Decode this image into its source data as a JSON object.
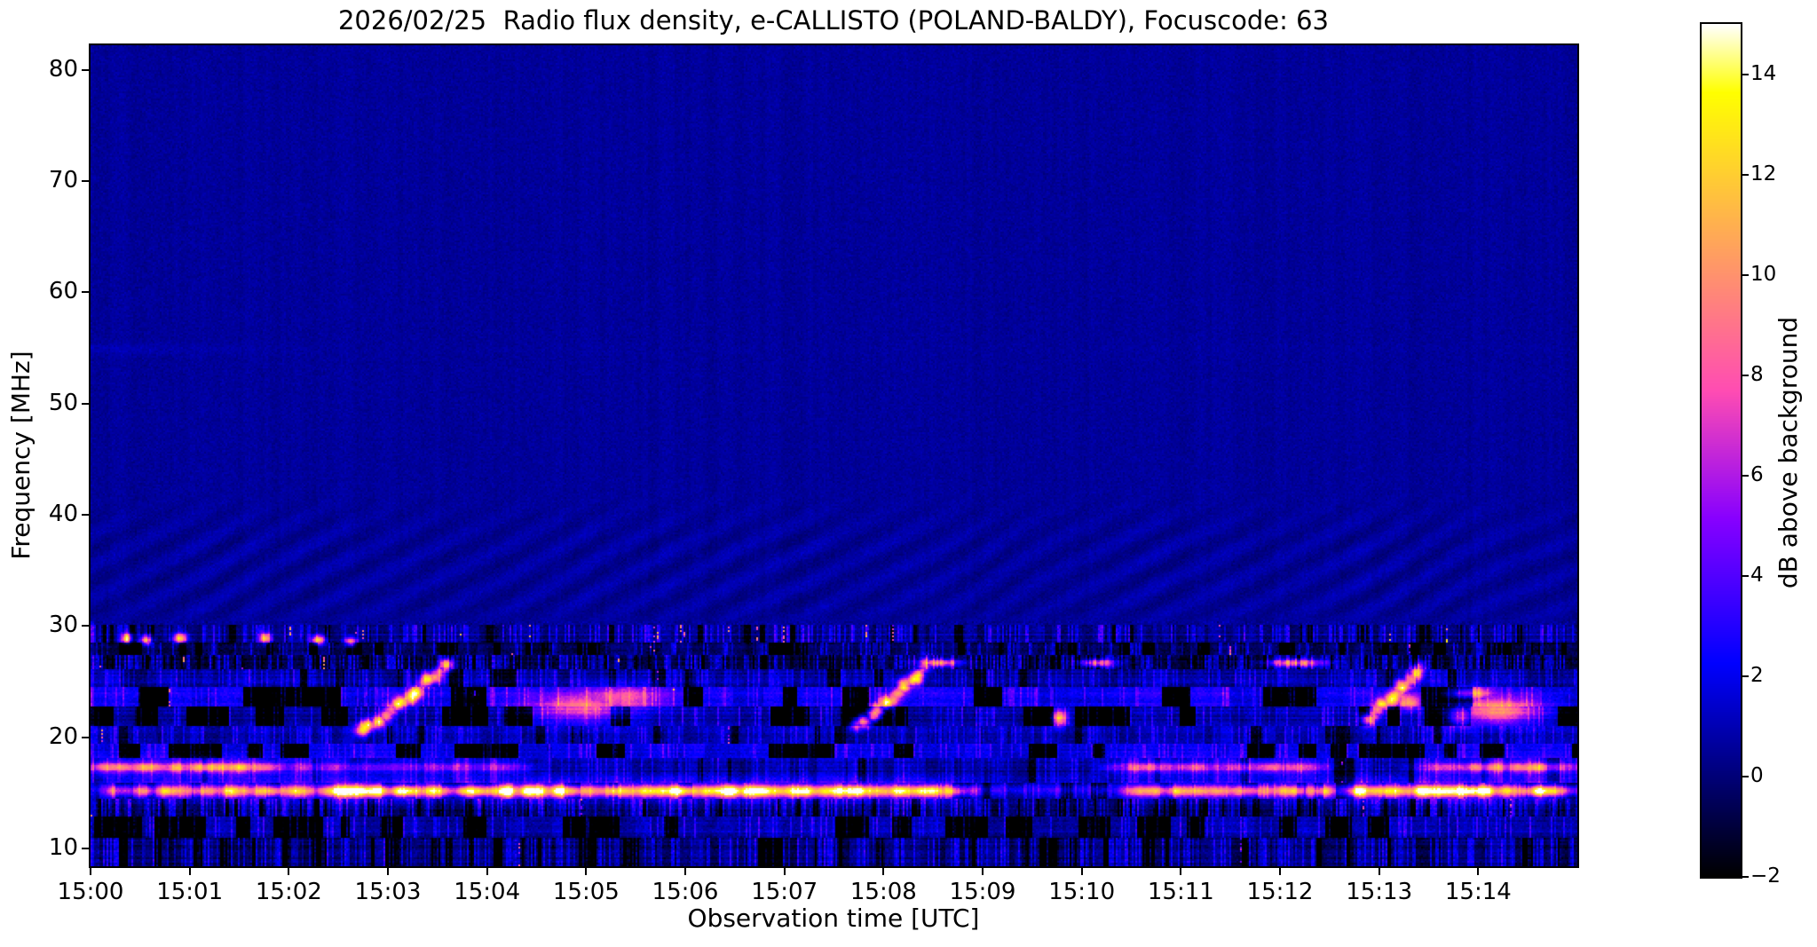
{
  "figure": {
    "background_color": "#ffffff",
    "text_color": "#000000"
  },
  "chart_data": {
    "type": "heatmap",
    "title": "2026/02/25  Radio flux density, e-CALLISTO (POLAND-BALDY), Focuscode: 63",
    "xlabel": "Observation time [UTC]",
    "ylabel": "Frequency [MHz]",
    "x_ticks": [
      "15:00",
      "15:01",
      "15:02",
      "15:03",
      "15:04",
      "15:05",
      "15:06",
      "15:07",
      "15:08",
      "15:09",
      "15:10",
      "15:11",
      "15:12",
      "15:13",
      "15:14"
    ],
    "x_tick_minutes": [
      0,
      1,
      2,
      3,
      4,
      5,
      6,
      7,
      8,
      9,
      10,
      11,
      12,
      13,
      14
    ],
    "x_range_minutes": [
      0,
      15
    ],
    "y_ticks": [
      "80",
      "70",
      "60",
      "50",
      "40",
      "30",
      "20",
      "10"
    ],
    "y_tick_values": [
      80,
      70,
      60,
      50,
      40,
      30,
      20,
      10
    ],
    "y_range_mhz": [
      8.4,
      82.2
    ],
    "grid": false,
    "colorbar": {
      "label": "dB above background",
      "tick_labels": [
        "14",
        "12",
        "10",
        "8",
        "6",
        "4",
        "2",
        "0",
        "−2"
      ],
      "tick_values": [
        14,
        12,
        10,
        8,
        6,
        4,
        2,
        0,
        -2
      ],
      "range_db": [
        -2,
        15
      ],
      "colormap": "gnuplot2",
      "background_hex": "#0b0b99"
    },
    "background_db": 0.55,
    "features": {
      "left_edge_boost": {
        "minutes": 0.05,
        "db": 1.6,
        "f_below": 30.5
      },
      "faint_line": {
        "f_mhz": 55.0,
        "amplitude_db": 0.5,
        "fade_minutes": 2.5,
        "sigma_mhz": 0.35
      },
      "ripples": {
        "f_hi": 42.5,
        "f_lo": 30.2,
        "amplitude_db": 0.5,
        "time_period_min": 0.62,
        "freq_period_mhz": 2.9
      },
      "bands": [
        {
          "name": "speckle-30MHz",
          "f_hi": 30.2,
          "f_lo": 28.6,
          "base_db": 0.2,
          "row_sigma_db": 0.35,
          "mod_db": 0.9,
          "block_cols": 3,
          "speckle_p": 0.3,
          "speckle_db": 2.6,
          "dark_p": 0.1,
          "hot_p": 0.01,
          "hot_db": 10,
          "checker": false
        },
        {
          "name": "dark-28MHz",
          "f_hi": 28.6,
          "f_lo": 27.5,
          "base_db": -0.7,
          "row_sigma_db": 0.3,
          "mod_db": 1.0,
          "block_cols": 5,
          "speckle_p": 0.22,
          "speckle_db": 2.2,
          "dark_p": 0.25,
          "hot_p": 0.004,
          "hot_db": 9,
          "checker": false
        },
        {
          "name": "grass-27MHz",
          "f_hi": 27.5,
          "f_lo": 26.1,
          "base_db": -1.2,
          "row_sigma_db": 0.2,
          "mod_db": 0.8,
          "block_cols": 2,
          "speckle_p": 0.5,
          "speckle_db": 2.9,
          "dark_p": 0.15,
          "hot_p": 0.006,
          "hot_db": 11,
          "checker": false
        },
        {
          "name": "blue-25MHz",
          "f_hi": 26.1,
          "f_lo": 24.6,
          "base_db": 0.5,
          "row_sigma_db": 0.3,
          "mod_db": 1.1,
          "block_cols": 6,
          "speckle_p": 0.3,
          "speckle_db": 1.8,
          "dark_p": 0.12,
          "hot_p": 0.003,
          "hot_db": 8,
          "checker": false
        },
        {
          "name": "patchy-23MHz",
          "f_hi": 24.6,
          "f_lo": 22.9,
          "base_db": -0.2,
          "row_sigma_db": 0.25,
          "mod_db": 2.2,
          "block_cols": 14,
          "speckle_p": 0.18,
          "speckle_db": 2.0,
          "dark_p": 0.32,
          "hot_p": 0.003,
          "hot_db": 8,
          "checker": true
        },
        {
          "name": "dark-22MHz",
          "f_hi": 22.9,
          "f_lo": 21.1,
          "base_db": -1.0,
          "row_sigma_db": 0.25,
          "mod_db": 1.6,
          "block_cols": 12,
          "speckle_p": 0.15,
          "speckle_db": 2.2,
          "dark_p": 0.4,
          "hot_p": 0.002,
          "hot_db": 8,
          "checker": true
        },
        {
          "name": "blue-20MHz",
          "f_hi": 21.1,
          "f_lo": 19.5,
          "base_db": 0.7,
          "row_sigma_db": 0.3,
          "mod_db": 1.0,
          "block_cols": 5,
          "speckle_p": 0.28,
          "speckle_db": 1.8,
          "dark_p": 0.1,
          "hot_p": 0.002,
          "hot_db": 7,
          "checker": false
        },
        {
          "name": "patchy-19MHz",
          "f_hi": 19.5,
          "f_lo": 18.2,
          "base_db": -0.3,
          "row_sigma_db": 0.25,
          "mod_db": 2.0,
          "block_cols": 11,
          "speckle_p": 0.2,
          "speckle_db": 2.0,
          "dark_p": 0.3,
          "hot_p": 0.001,
          "hot_db": 7,
          "checker": true
        },
        {
          "name": "blue-17MHz",
          "f_hi": 18.2,
          "f_lo": 15.9,
          "base_db": 0.45,
          "row_sigma_db": 0.3,
          "mod_db": 1.0,
          "block_cols": 5,
          "speckle_p": 0.25,
          "speckle_db": 1.7,
          "dark_p": 0.1,
          "hot_p": 0.001,
          "hot_db": 7,
          "checker": false
        },
        {
          "name": "line-zone-15MHz",
          "f_hi": 15.9,
          "f_lo": 14.5,
          "base_db": 0.0,
          "row_sigma_db": 0.3,
          "mod_db": 1.2,
          "block_cols": 7,
          "speckle_p": 0.2,
          "speckle_db": 1.6,
          "dark_p": 0.18,
          "hot_p": 0.0,
          "hot_db": 0,
          "checker": false
        },
        {
          "name": "grass-13MHz",
          "f_hi": 14.5,
          "f_lo": 12.9,
          "base_db": -0.8,
          "row_sigma_db": 0.25,
          "mod_db": 0.9,
          "block_cols": 2,
          "speckle_p": 0.45,
          "speckle_db": 2.7,
          "dark_p": 0.15,
          "hot_p": 0.003,
          "hot_db": 8,
          "checker": false
        },
        {
          "name": "dark-12MHz",
          "f_hi": 12.9,
          "f_lo": 11.1,
          "base_db": -0.9,
          "row_sigma_db": 0.3,
          "mod_db": 1.5,
          "block_cols": 10,
          "speckle_p": 0.18,
          "speckle_db": 2.3,
          "dark_p": 0.32,
          "hot_p": 0.003,
          "hot_db": 8,
          "checker": true
        },
        {
          "name": "noisy-bottom",
          "f_hi": 11.1,
          "f_lo": 8.4,
          "base_db": -0.35,
          "row_sigma_db": 0.3,
          "mod_db": 1.2,
          "block_cols": 4,
          "speckle_p": 0.4,
          "speckle_db": 2.3,
          "dark_p": 0.2,
          "hot_p": 0.004,
          "hot_db": 7,
          "checker": false
        }
      ],
      "bright_lines": [
        {
          "f_mhz": 17.35,
          "sigma_mhz": 0.3,
          "halo_sigma_mhz": 0.75,
          "halo_frac": 0.3,
          "segments": [
            {
              "t0": 0.0,
              "t1": 1.9,
              "peak_db": 8.5
            },
            {
              "t0": 1.9,
              "t1": 4.4,
              "peak_db": 4.0
            },
            {
              "t0": 10.3,
              "t1": 12.4,
              "peak_db": 6.0
            },
            {
              "t0": 13.4,
              "t1": 15.0,
              "peak_db": 7.5
            }
          ]
        },
        {
          "f_mhz": 15.2,
          "sigma_mhz": 0.33,
          "halo_sigma_mhz": 0.85,
          "halo_frac": 0.32,
          "segments": [
            {
              "t0": 0.15,
              "t1": 2.3,
              "peak_db": 9.5
            },
            {
              "t0": 2.3,
              "t1": 8.9,
              "peak_db": 12.5
            },
            {
              "t0": 8.9,
              "t1": 10.4,
              "peak_db": 2.5
            },
            {
              "t0": 10.4,
              "t1": 12.6,
              "peak_db": 9.5
            },
            {
              "t0": 12.6,
              "t1": 15.0,
              "peak_db": 13.0
            }
          ]
        }
      ],
      "bursts": [
        {
          "t_start": 2.72,
          "t_end": 3.58,
          "f_start": 20.6,
          "f_end": 26.6,
          "peak_db": 13
        },
        {
          "t_start": 7.72,
          "t_end": 8.42,
          "f_start": 21.0,
          "f_end": 26.5,
          "peak_db": 13
        },
        {
          "t_start": 12.82,
          "t_end": 13.42,
          "f_start": 21.4,
          "f_end": 26.3,
          "peak_db": 12
        }
      ],
      "hot_spots": [
        {
          "t": 9.78,
          "f": 21.8,
          "peak_db": 11,
          "sigma_t": 0.05,
          "sigma_f": 0.5
        },
        {
          "t": 13.82,
          "f": 21.9,
          "peak_db": 9,
          "sigma_t": 0.1,
          "sigma_f": 0.7
        },
        {
          "t": 13.3,
          "f": 23.3,
          "peak_db": 8,
          "sigma_t": 0.08,
          "sigma_f": 0.5
        },
        {
          "t": 10.15,
          "f": 26.7,
          "peak_db": 10,
          "sigma_t": 0.12,
          "sigma_f": 0.25
        },
        {
          "t": 8.55,
          "f": 26.8,
          "peak_db": 10,
          "sigma_t": 0.15,
          "sigma_f": 0.25
        },
        {
          "t": 12.15,
          "f": 26.7,
          "peak_db": 10,
          "sigma_t": 0.2,
          "sigma_f": 0.25
        },
        {
          "t": 0.35,
          "f": 28.9,
          "peak_db": 12,
          "sigma_t": 0.04,
          "sigma_f": 0.3
        },
        {
          "t": 0.55,
          "f": 28.8,
          "peak_db": 11,
          "sigma_t": 0.04,
          "sigma_f": 0.3
        },
        {
          "t": 0.9,
          "f": 28.9,
          "peak_db": 12,
          "sigma_t": 0.05,
          "sigma_f": 0.3
        },
        {
          "t": 1.75,
          "f": 28.9,
          "peak_db": 11,
          "sigma_t": 0.04,
          "sigma_f": 0.3
        },
        {
          "t": 2.3,
          "f": 28.8,
          "peak_db": 12,
          "sigma_t": 0.05,
          "sigma_f": 0.3
        },
        {
          "t": 2.62,
          "f": 28.6,
          "peak_db": 10,
          "sigma_t": 0.04,
          "sigma_f": 0.3
        },
        {
          "t": 14.2,
          "f": 22.5,
          "peak_db": 9,
          "sigma_t": 0.3,
          "sigma_f": 0.8
        },
        {
          "t": 13.9,
          "f": 24.0,
          "peak_db": 8,
          "sigma_t": 0.15,
          "sigma_f": 0.4
        },
        {
          "t": 4.95,
          "f": 22.8,
          "peak_db": 7,
          "sigma_t": 0.35,
          "sigma_f": 0.9
        },
        {
          "t": 5.3,
          "f": 23.5,
          "peak_db": 6,
          "sigma_t": 0.3,
          "sigma_f": 0.8
        }
      ]
    }
  }
}
